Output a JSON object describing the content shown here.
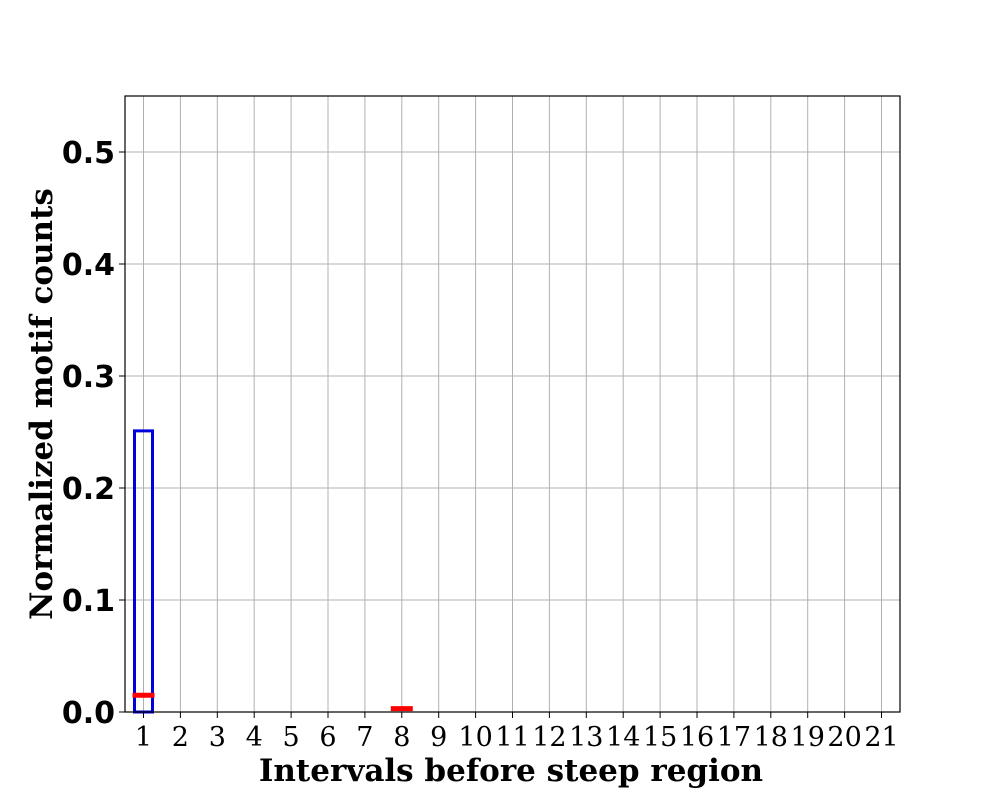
{
  "chart_data": {
    "type": "bar",
    "title": "",
    "xlabel": "Intervals before steep region",
    "ylabel": "Normalized motif counts",
    "categories": [
      "1",
      "2",
      "3",
      "4",
      "5",
      "6",
      "7",
      "8",
      "9",
      "10",
      "11",
      "12",
      "13",
      "14",
      "15",
      "16",
      "17",
      "18",
      "19",
      "20",
      "21"
    ],
    "ylim": [
      0,
      0.55
    ],
    "yticks": [
      "0.0",
      "0.1",
      "0.2",
      "0.3",
      "0.4",
      "0.5"
    ],
    "grid": true,
    "series": [
      {
        "style": "bar-outline",
        "color": "#0000dd",
        "values": [
          0.251,
          0,
          0,
          0,
          0,
          0,
          0,
          0,
          0,
          0,
          0,
          0,
          0,
          0,
          0,
          0,
          0,
          0,
          0,
          0,
          0
        ]
      },
      {
        "style": "horizontal-marker",
        "color": "#ff0000",
        "values": [
          0.015,
          null,
          null,
          null,
          null,
          null,
          null,
          0.003,
          null,
          null,
          null,
          null,
          null,
          null,
          null,
          null,
          null,
          null,
          null,
          null,
          null
        ]
      }
    ]
  }
}
